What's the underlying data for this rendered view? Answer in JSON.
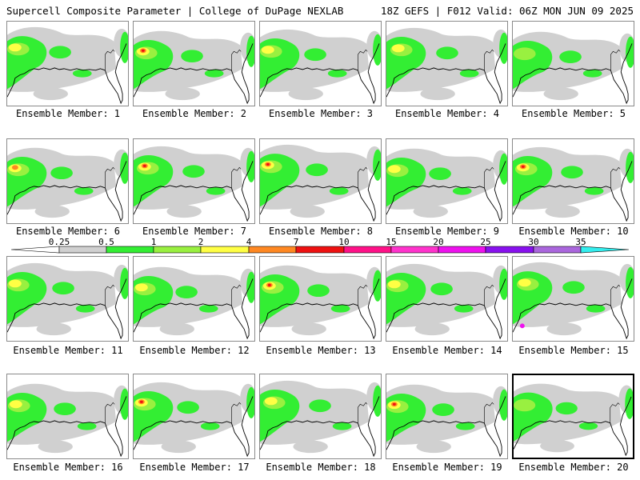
{
  "header": {
    "title": "Supercell Composite Parameter | College of DuPage NEXLAB",
    "valid": "18Z GEFS | F012 Valid: 06Z MON JUN 09 2025"
  },
  "colorbar": {
    "labels": [
      "0.25",
      "0.5",
      "1",
      "2",
      "4",
      "7",
      "10",
      "15",
      "20",
      "25",
      "30",
      "35"
    ],
    "colors": [
      "#ffffff",
      "#d0d0d0",
      "#33ee33",
      "#99f040",
      "#ffff44",
      "#ff8822",
      "#ee1111",
      "#ff1188",
      "#ff33cc",
      "#ee11ee",
      "#8811ee",
      "#aa66dd",
      "#33eeee"
    ]
  },
  "map_colors": {
    "gray": "#d0d0d0",
    "green": "#33ee33",
    "lime": "#99f040",
    "yellow": "#ffff44",
    "orange": "#ff8822",
    "red": "#ee1111",
    "magenta": "#ee11ee",
    "coast": "#000000"
  },
  "panels": [
    {
      "label": "Ensemble Member: 1",
      "intensity": "yellow"
    },
    {
      "label": "Ensemble Member: 2",
      "intensity": "red"
    },
    {
      "label": "Ensemble Member: 3",
      "intensity": "yellow"
    },
    {
      "label": "Ensemble Member: 4",
      "intensity": "yellow"
    },
    {
      "label": "Ensemble Member: 5",
      "intensity": "lime"
    },
    {
      "label": "Ensemble Member: 6",
      "intensity": "orange"
    },
    {
      "label": "Ensemble Member: 7",
      "intensity": "red"
    },
    {
      "label": "Ensemble Member: 8",
      "intensity": "red"
    },
    {
      "label": "Ensemble Member: 9",
      "intensity": "yellow"
    },
    {
      "label": "Ensemble Member: 10",
      "intensity": "red"
    },
    {
      "label": "Ensemble Member: 11",
      "intensity": "yellow"
    },
    {
      "label": "Ensemble Member: 12",
      "intensity": "yellow"
    },
    {
      "label": "Ensemble Member: 13",
      "intensity": "red"
    },
    {
      "label": "Ensemble Member: 14",
      "intensity": "yellow"
    },
    {
      "label": "Ensemble Member: 15",
      "intensity": "magenta"
    },
    {
      "label": "Ensemble Member: 16",
      "intensity": "yellow"
    },
    {
      "label": "Ensemble Member: 17",
      "intensity": "red"
    },
    {
      "label": "Ensemble Member: 18",
      "intensity": "yellow"
    },
    {
      "label": "Ensemble Member: 19",
      "intensity": "red"
    },
    {
      "label": "Ensemble Member: 20",
      "intensity": "lime"
    }
  ]
}
